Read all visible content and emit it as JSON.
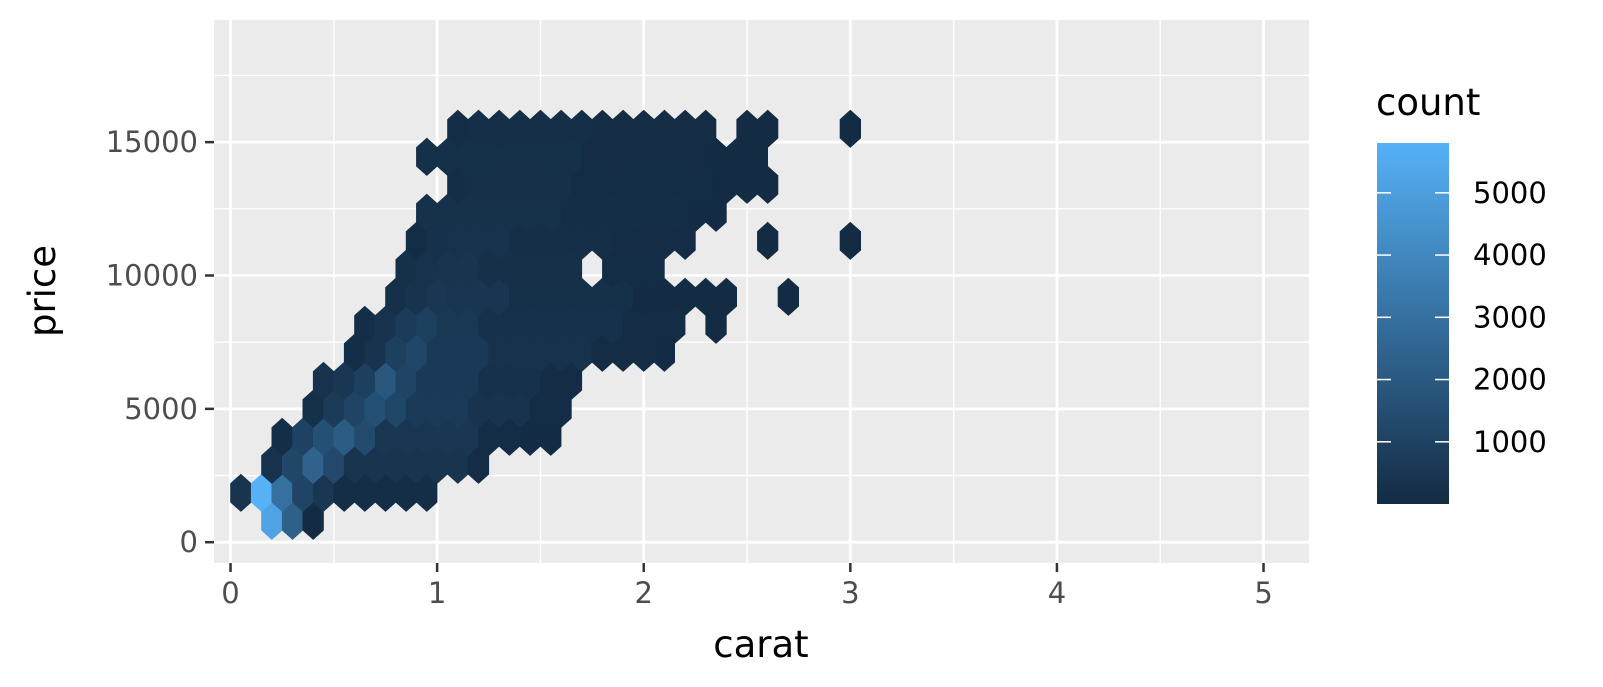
{
  "chart_data": {
    "type": "heatmap",
    "subtype": "hexbin",
    "xlabel": "carat",
    "ylabel": "price",
    "xlim": [
      -0.08,
      5.22
    ],
    "ylim": [
      -780,
      19580
    ],
    "x_ticks": [
      0,
      1,
      2,
      3,
      4,
      5
    ],
    "x_tick_labels": [
      "0",
      "1",
      "2",
      "3",
      "4",
      "5"
    ],
    "y_ticks": [
      0,
      5000,
      10000,
      15000
    ],
    "y_tick_labels": [
      "0",
      "5000",
      "10000",
      "15000"
    ],
    "grid": true,
    "panel_background": "#ebebeb",
    "grid_color": "#ffffff",
    "legend": {
      "title": "count",
      "placement": "right",
      "ticks": [
        1000,
        2000,
        3000,
        4000,
        5000
      ],
      "tick_labels": [
        "1000",
        "2000",
        "3000",
        "4000",
        "5000"
      ],
      "range": [
        1,
        5800
      ],
      "low_color": "#132b43",
      "high_color": "#56b1f7"
    },
    "hex": {
      "x_start": 0.1,
      "x_step": 0.1,
      "y_base": -250,
      "y_step": 1050
    },
    "hex_rows": [
      {
        "row": 0,
        "cols": [
          [
            1,
            1,
            30
          ]
        ]
      },
      {
        "row": 1,
        "cols": [
          [
            1,
            2,
            5200
          ],
          [
            2,
            3,
            2300
          ],
          [
            3,
            4,
            30
          ]
        ]
      },
      {
        "row": 2,
        "cols": [
          [
            0,
            1,
            400
          ],
          [
            1,
            2,
            5800
          ],
          [
            2,
            3,
            3000
          ],
          [
            3,
            4,
            1100
          ],
          [
            4,
            5,
            500
          ],
          [
            5,
            10,
            150
          ]
        ]
      },
      {
        "row": 3,
        "cols": [
          [
            1,
            2,
            300
          ],
          [
            2,
            3,
            1200
          ],
          [
            3,
            4,
            2400
          ],
          [
            4,
            5,
            1300
          ],
          [
            5,
            11,
            400
          ],
          [
            11,
            12,
            60
          ]
        ]
      },
      {
        "row": 4,
        "cols": [
          [
            2,
            3,
            150
          ],
          [
            3,
            4,
            1000
          ],
          [
            4,
            5,
            1600
          ],
          [
            5,
            6,
            2100
          ],
          [
            6,
            7,
            1400
          ],
          [
            7,
            12,
            500
          ],
          [
            12,
            14,
            100
          ],
          [
            14,
            16,
            40
          ]
        ]
      },
      {
        "row": 5,
        "cols": [
          [
            3,
            4,
            200
          ],
          [
            4,
            5,
            700
          ],
          [
            5,
            6,
            1100
          ],
          [
            6,
            7,
            1600
          ],
          [
            7,
            8,
            1200
          ],
          [
            8,
            11,
            650
          ],
          [
            11,
            14,
            350
          ],
          [
            14,
            16,
            90
          ]
        ]
      },
      {
        "row": 6,
        "cols": [
          [
            4,
            5,
            300
          ],
          [
            5,
            6,
            500
          ],
          [
            6,
            7,
            900
          ],
          [
            7,
            8,
            1900
          ],
          [
            8,
            9,
            1100
          ],
          [
            9,
            12,
            600
          ],
          [
            12,
            15,
            250
          ],
          [
            15,
            17,
            60
          ]
        ]
      },
      {
        "row": 7,
        "cols": [
          [
            5,
            6,
            150
          ],
          [
            6,
            7,
            350
          ],
          [
            7,
            8,
            900
          ],
          [
            8,
            9,
            1200
          ],
          [
            9,
            12,
            600
          ],
          [
            12,
            17,
            300
          ],
          [
            17,
            20,
            80
          ],
          [
            20,
            21,
            20
          ]
        ]
      },
      {
        "row": 8,
        "cols": [
          [
            6,
            7,
            150
          ],
          [
            7,
            8,
            350
          ],
          [
            8,
            9,
            700
          ],
          [
            9,
            10,
            900
          ],
          [
            10,
            12,
            550
          ],
          [
            12,
            19,
            250
          ],
          [
            19,
            22,
            60
          ],
          [
            23,
            24,
            10
          ]
        ]
      },
      {
        "row": 9,
        "cols": [
          [
            7,
            8,
            200
          ],
          [
            8,
            9,
            350
          ],
          [
            9,
            10,
            500
          ],
          [
            10,
            13,
            450
          ],
          [
            13,
            19,
            200
          ],
          [
            19,
            23,
            40
          ],
          [
            23,
            24,
            10
          ],
          [
            26,
            27,
            10
          ]
        ]
      },
      {
        "row": 10,
        "cols": [
          [
            8,
            9,
            200
          ],
          [
            9,
            10,
            300
          ],
          [
            10,
            12,
            400
          ],
          [
            12,
            17,
            220
          ],
          [
            18,
            21,
            90
          ]
        ]
      },
      {
        "row": 11,
        "cols": [
          [
            8,
            9,
            100
          ],
          [
            9,
            10,
            250
          ],
          [
            10,
            13,
            320
          ],
          [
            13,
            18,
            180
          ],
          [
            18,
            22,
            60
          ],
          [
            25,
            26,
            10
          ],
          [
            29,
            30,
            10
          ]
        ]
      },
      {
        "row": 12,
        "cols": [
          [
            9,
            10,
            120
          ],
          [
            9,
            16,
            240
          ],
          [
            16,
            22,
            110
          ],
          [
            22,
            24,
            35
          ]
        ]
      },
      {
        "row": 13,
        "cols": [
          [
            10,
            11,
            150
          ],
          [
            11,
            16,
            220
          ],
          [
            16,
            23,
            100
          ],
          [
            23,
            26,
            25
          ]
        ]
      },
      {
        "row": 14,
        "cols": [
          [
            9,
            10,
            140
          ],
          [
            9,
            17,
            210
          ],
          [
            17,
            23,
            80
          ],
          [
            23,
            25,
            30
          ],
          [
            25,
            26,
            10
          ]
        ]
      },
      {
        "row": 15,
        "cols": [
          [
            10,
            11,
            150
          ],
          [
            11,
            17,
            190
          ],
          [
            17,
            23,
            70
          ],
          [
            24,
            25,
            10
          ],
          [
            25,
            26,
            10
          ],
          [
            29,
            30,
            10
          ]
        ]
      }
    ]
  }
}
